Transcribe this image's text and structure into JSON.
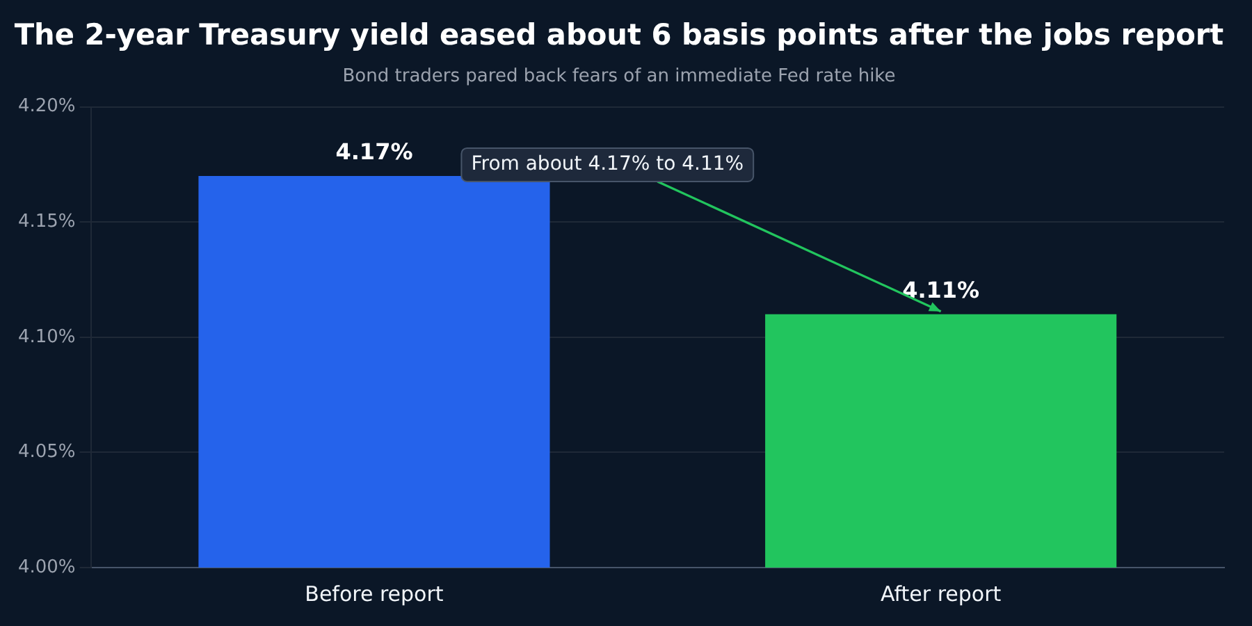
{
  "chart_data": {
    "type": "bar",
    "title": "The 2-year Treasury yield eased about 6 basis points after the jobs report",
    "subtitle": "Bond traders pared back fears of an immediate Fed rate hike",
    "categories": [
      "Before report",
      "After report"
    ],
    "values": [
      4.17,
      4.11
    ],
    "colors": [
      "#2563eb",
      "#22c55e"
    ],
    "value_labels": [
      "4.17%",
      "4.11%"
    ],
    "ylim": [
      4.0,
      4.2
    ],
    "yticks": [
      {
        "value": 4.0,
        "label": "4.00%"
      },
      {
        "value": 4.05,
        "label": "4.05%"
      },
      {
        "value": 4.1,
        "label": "4.10%"
      },
      {
        "value": 4.15,
        "label": "4.15%"
      },
      {
        "value": 4.2,
        "label": "4.20%"
      }
    ],
    "grid": "y",
    "legend": false,
    "annotations": [
      {
        "text": "From about 4.17% to 4.11%",
        "x": "After report",
        "y": 4.11
      }
    ]
  }
}
